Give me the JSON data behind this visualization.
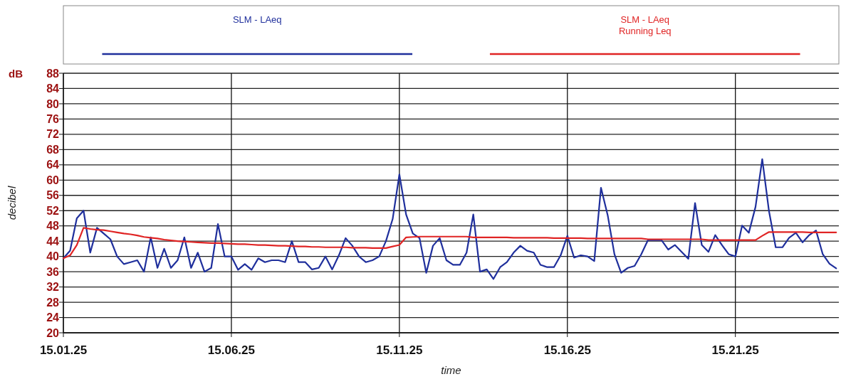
{
  "chart_data": {
    "type": "line",
    "xlabel": "time",
    "ylabel": "decibel",
    "annotations": [
      "dB"
    ],
    "categories": [
      "15.01.25",
      null,
      null,
      null,
      null,
      null,
      null,
      null,
      null,
      null,
      null,
      null,
      null,
      null,
      null,
      null,
      null,
      null,
      null,
      null,
      null,
      null,
      null,
      null,
      null,
      "15.06.25",
      null,
      null,
      null,
      null,
      null,
      null,
      null,
      null,
      null,
      null,
      null,
      null,
      null,
      null,
      null,
      null,
      null,
      null,
      null,
      null,
      null,
      null,
      null,
      null,
      "15.11.25",
      null,
      null,
      null,
      null,
      null,
      null,
      null,
      null,
      null,
      null,
      null,
      null,
      null,
      null,
      null,
      null,
      null,
      null,
      null,
      null,
      null,
      null,
      null,
      null,
      "15.16.25",
      null,
      null,
      null,
      null,
      null,
      null,
      null,
      null,
      null,
      null,
      null,
      null,
      null,
      null,
      null,
      null,
      null,
      null,
      null,
      null,
      null,
      null,
      null,
      null,
      "15.21.25",
      null,
      null,
      null,
      null,
      null,
      null,
      null,
      null,
      null,
      null,
      null,
      null,
      null,
      null,
      null
    ],
    "ylim": [
      20,
      88
    ],
    "yticks": [
      20,
      24,
      28,
      32,
      36,
      40,
      44,
      48,
      52,
      56,
      60,
      64,
      68,
      72,
      76,
      80,
      84,
      88
    ],
    "grid": true,
    "legend": "top",
    "marker": "none",
    "line_style": "solid",
    "series": [
      {
        "name": "SLM - LAeq",
        "color": "#1f2f9c",
        "values": [
          39.5,
          41.5,
          50,
          52,
          41,
          47.5,
          46,
          44.5,
          40,
          38,
          38.5,
          39,
          36,
          45,
          37,
          42,
          37,
          39,
          45,
          37,
          41,
          36,
          37,
          48.5,
          40,
          40,
          36.5,
          38,
          36.5,
          39.5,
          38.5,
          39,
          39,
          38.5,
          44,
          38.5,
          38.5,
          36.6,
          37,
          40,
          36.6,
          40.3,
          44.8,
          42.8,
          40,
          38.5,
          39,
          40,
          44,
          49.8,
          61.5,
          51,
          46,
          44.8,
          35.7,
          42.8,
          44.8,
          39,
          37.8,
          37.8,
          41,
          51,
          36,
          36.6,
          34.1,
          37.2,
          38.5,
          41,
          42.8,
          41.5,
          41,
          37.8,
          37.2,
          37.2,
          40.3,
          45.4,
          39.7,
          40.3,
          40,
          38.8,
          58,
          50.8,
          40.6,
          35.7,
          37,
          37.5,
          40.6,
          44.3,
          44.3,
          44.3,
          41.8,
          43,
          41.2,
          39.4,
          54,
          43,
          41.2,
          45.6,
          43,
          40.6,
          40,
          48.1,
          46.2,
          53,
          65.5,
          51.9,
          42.4,
          42.4,
          44.9,
          46.2,
          43.7,
          45.6,
          46.8,
          40.6,
          38.1,
          36.9
        ]
      },
      {
        "name": "SLM - LAeq Running Leq",
        "color": "#e02424",
        "values": [
          39.5,
          40.3,
          43,
          47.5,
          47.2,
          47,
          46.9,
          46.6,
          46.3,
          46,
          45.8,
          45.5,
          45.1,
          44.9,
          44.7,
          44.4,
          44.2,
          44,
          43.9,
          43.8,
          43.7,
          43.6,
          43.5,
          43.5,
          43.4,
          43.3,
          43.2,
          43.2,
          43.1,
          43,
          43,
          42.9,
          42.8,
          42.8,
          42.7,
          42.6,
          42.6,
          42.5,
          42.5,
          42.4,
          42.4,
          42.4,
          42.4,
          42.3,
          42.3,
          42.3,
          42.2,
          42.2,
          42.2,
          42.6,
          43,
          45,
          45.1,
          45.2,
          45.2,
          45.2,
          45.2,
          45.2,
          45.2,
          45.2,
          45.2,
          45,
          45,
          45,
          45,
          45,
          45,
          44.9,
          44.9,
          44.9,
          44.9,
          44.9,
          44.9,
          44.8,
          44.8,
          44.8,
          44.8,
          44.8,
          44.7,
          44.7,
          44.7,
          44.7,
          44.7,
          44.7,
          44.7,
          44.7,
          44.7,
          44.5,
          44.5,
          44.5,
          44.5,
          44.5,
          44.5,
          44.5,
          44.5,
          44.5,
          44.3,
          44.3,
          44.3,
          44.3,
          44.3,
          44.3,
          44.3,
          44.3,
          45.4,
          46.4,
          46.4,
          46.4,
          46.4,
          46.4,
          46.4,
          46.3,
          46.3,
          46.3,
          46.3,
          46.3
        ]
      }
    ]
  }
}
